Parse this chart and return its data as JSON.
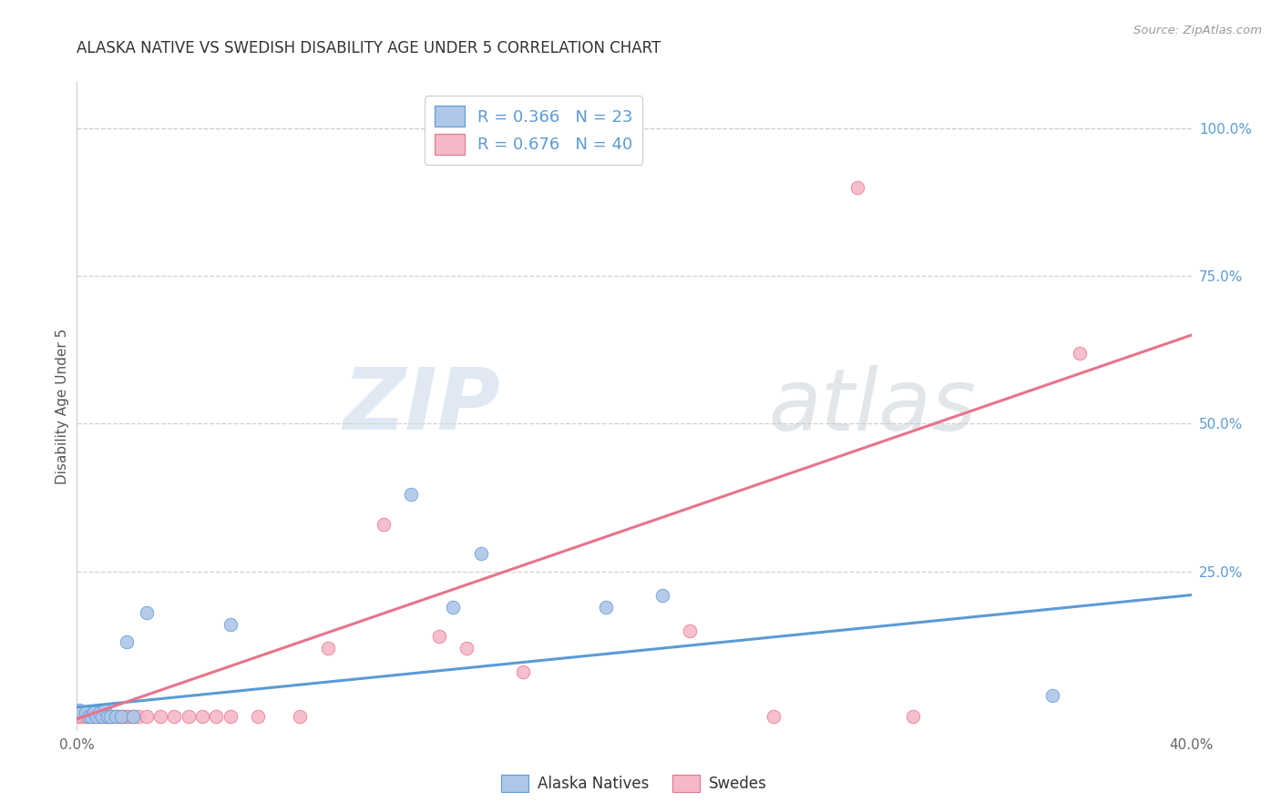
{
  "title": "ALASKA NATIVE VS SWEDISH DISABILITY AGE UNDER 5 CORRELATION CHART",
  "source": "Source: ZipAtlas.com",
  "ylabel": "Disability Age Under 5",
  "watermark_zip": "ZIP",
  "watermark_atlas": "atlas",
  "xlim": [
    0.0,
    0.4
  ],
  "ylim": [
    -0.02,
    1.08
  ],
  "plot_ylim": [
    0.0,
    1.05
  ],
  "xtick_vals": [
    0.0,
    0.4
  ],
  "xtick_labels": [
    "0.0%",
    "40.0%"
  ],
  "ytick_vals_right": [
    1.0,
    0.75,
    0.5,
    0.25
  ],
  "ytick_labels_right": [
    "100.0%",
    "75.0%",
    "50.0%",
    "25.0%"
  ],
  "alaska_R": 0.366,
  "alaska_N": 23,
  "swede_R": 0.676,
  "swede_N": 40,
  "alaska_color": "#aec6e8",
  "swede_color": "#f5b8c8",
  "alaska_edge_color": "#5b9bd5",
  "swede_edge_color": "#e8748a",
  "alaska_line_color": "#5b9bd5",
  "swede_line_color": "#e8748a",
  "alaska_scatter_x": [
    0.001,
    0.003,
    0.004,
    0.005,
    0.006,
    0.007,
    0.008,
    0.009,
    0.01,
    0.011,
    0.012,
    0.014,
    0.016,
    0.018,
    0.02,
    0.025,
    0.055,
    0.12,
    0.135,
    0.145,
    0.19,
    0.21,
    0.35
  ],
  "alaska_scatter_y": [
    0.015,
    0.01,
    0.005,
    0.005,
    0.01,
    0.005,
    0.01,
    0.005,
    0.015,
    0.005,
    0.005,
    0.005,
    0.005,
    0.13,
    0.005,
    0.18,
    0.16,
    0.38,
    0.19,
    0.28,
    0.19,
    0.21,
    0.04
  ],
  "swede_scatter_x": [
    0.001,
    0.002,
    0.003,
    0.004,
    0.005,
    0.006,
    0.007,
    0.008,
    0.009,
    0.01,
    0.011,
    0.012,
    0.013,
    0.014,
    0.015,
    0.016,
    0.017,
    0.018,
    0.019,
    0.02,
    0.022,
    0.025,
    0.03,
    0.035,
    0.04,
    0.045,
    0.05,
    0.055,
    0.065,
    0.08,
    0.09,
    0.11,
    0.13,
    0.14,
    0.16,
    0.22,
    0.25,
    0.28,
    0.3,
    0.36
  ],
  "swede_scatter_y": [
    0.005,
    0.005,
    0.005,
    0.005,
    0.005,
    0.005,
    0.005,
    0.005,
    0.005,
    0.005,
    0.005,
    0.005,
    0.005,
    0.005,
    0.005,
    0.005,
    0.005,
    0.005,
    0.005,
    0.005,
    0.005,
    0.005,
    0.005,
    0.005,
    0.005,
    0.005,
    0.005,
    0.005,
    0.005,
    0.005,
    0.12,
    0.33,
    0.14,
    0.12,
    0.08,
    0.15,
    0.005,
    0.9,
    0.005,
    0.62
  ],
  "alaska_line_x": [
    0.0,
    0.4
  ],
  "alaska_line_y": [
    0.02,
    0.21
  ],
  "swede_line_x": [
    0.0,
    0.4
  ],
  "swede_line_y": [
    0.0,
    0.65
  ],
  "legend_label_blue": "Alaska Natives",
  "legend_label_pink": "Swedes",
  "bg_color": "#ffffff",
  "grid_color": "#d0d0d0",
  "grid_top_color": "#d0d0d0"
}
